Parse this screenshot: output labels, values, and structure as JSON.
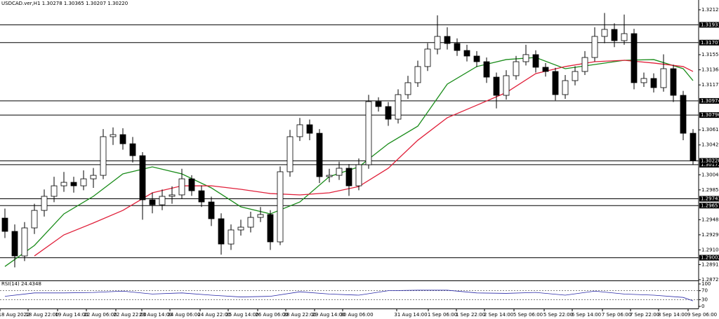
{
  "chart_data": {
    "type": "candlestick",
    "title": "USDCAD.ver,H1 1.30278 1.30365 1.30207 1.30220",
    "ylim": [
      1.28716,
      1.32243
    ],
    "yticks": [
      {
        "value": 1.3212,
        "label": "1.32120"
      },
      {
        "value": 1.31555,
        "label": "1.31555"
      },
      {
        "value": 1.31365,
        "label": "1.31365"
      },
      {
        "value": 1.31175,
        "label": "1.31175"
      },
      {
        "value": 1.3061,
        "label": "1.30610"
      },
      {
        "value": 1.3042,
        "label": "1.30420"
      },
      {
        "value": 1.30045,
        "label": "1.30045"
      },
      {
        "value": 1.29855,
        "label": "1.29855"
      },
      {
        "value": 1.2948,
        "label": "1.29480"
      },
      {
        "value": 1.2929,
        "label": "1.29290"
      },
      {
        "value": 1.291,
        "label": "1.29100"
      },
      {
        "value": 1.28915,
        "label": "1.28915"
      },
      {
        "value": 1.28725,
        "label": "1.28725"
      }
    ],
    "levels": [
      {
        "value": 1.31931,
        "label": "1.31931"
      },
      {
        "value": 1.31707,
        "label": "1.31707"
      },
      {
        "value": 1.30974,
        "label": "1.30974"
      },
      {
        "value": 1.30796,
        "label": "1.30796"
      },
      {
        "value": 1.30172,
        "label": "1.30172"
      },
      {
        "value": 1.29743,
        "label": "1.29743"
      },
      {
        "value": 1.29657,
        "label": "1.29657"
      },
      {
        "value": 1.29002,
        "label": "1.29002"
      }
    ],
    "current": {
      "value": 1.3022,
      "label": "1.30220"
    },
    "open": [
      1.295,
      1.29333,
      1.29024,
      1.29377,
      1.29597,
      1.29774,
      1.29906,
      1.2995,
      1.29906,
      1.29994,
      1.30038,
      1.30524,
      1.3055,
      1.30435,
      1.30285,
      1.2973,
      1.29668,
      1.29774,
      1.29792,
      1.29994,
      1.29844,
      1.29703,
      1.29492,
      1.29174,
      1.29351,
      1.29386,
      1.29509,
      1.29545,
      1.29201,
      1.30083,
      1.30524,
      1.30674,
      1.30567,
      1.30021,
      1.30038,
      1.30127,
      1.29906,
      1.30171,
      1.30965,
      1.30903,
      1.30744,
      1.31053,
      1.31203,
      1.31406,
      1.31626,
      1.31785,
      1.31696,
      1.31608,
      1.31538,
      1.31467,
      1.31273,
      1.31044,
      1.31291,
      1.31467,
      1.31556,
      1.31397,
      1.31344,
      1.31053,
      1.31229,
      1.31344,
      1.3152,
      1.31785,
      1.31873,
      1.31732,
      1.3182,
      1.31203,
      1.31256,
      1.31141,
      1.31379,
      1.31044,
      1.30567
    ],
    "high": [
      1.2962,
      1.2942,
      1.2945,
      1.2968,
      1.2986,
      1.3002,
      1.3008,
      1.3002,
      1.301,
      1.3013,
      1.3062,
      1.3064,
      1.3063,
      1.3052,
      1.3033,
      1.2982,
      1.2986,
      1.299,
      1.3012,
      1.3004,
      1.2991,
      1.2977,
      1.2956,
      1.2942,
      1.2948,
      1.2958,
      1.2964,
      1.296,
      1.3015,
      1.3061,
      1.3076,
      1.3074,
      1.3062,
      1.3012,
      1.3021,
      1.3018,
      1.3025,
      1.3105,
      1.3102,
      1.3096,
      1.3112,
      1.3129,
      1.3148,
      1.317,
      1.3205,
      1.319,
      1.3176,
      1.3168,
      1.316,
      1.3152,
      1.3133,
      1.3136,
      1.3154,
      1.3168,
      1.3161,
      1.3145,
      1.3139,
      1.313,
      1.3141,
      1.316,
      1.319,
      1.3208,
      1.3195,
      1.3206,
      1.3188,
      1.3133,
      1.3132,
      1.3156,
      1.3143,
      1.311,
      1.3062
    ],
    "low": [
      1.2925,
      1.2888,
      1.2896,
      1.293,
      1.2952,
      1.297,
      1.2983,
      1.2982,
      1.2985,
      1.2988,
      1.2999,
      1.3042,
      1.3036,
      1.302,
      1.2948,
      1.2956,
      1.296,
      1.2968,
      1.2974,
      1.2978,
      1.2964,
      1.294,
      1.2904,
      1.291,
      1.2928,
      1.2932,
      1.2945,
      1.291,
      1.2916,
      1.3002,
      1.3047,
      1.3048,
      1.2994,
      1.2995,
      1.2998,
      1.2978,
      1.2985,
      1.3012,
      1.3084,
      1.3066,
      1.3069,
      1.31,
      1.3115,
      1.3135,
      1.3156,
      1.3162,
      1.3154,
      1.3147,
      1.314,
      1.312,
      1.3088,
      1.3099,
      1.3124,
      1.3142,
      1.3133,
      1.3128,
      1.3098,
      1.31,
      1.3117,
      1.313,
      1.3147,
      1.317,
      1.3165,
      1.3168,
      1.3112,
      1.3115,
      1.3108,
      1.3109,
      1.3096,
      1.3048,
      1.3017
    ],
    "close": [
      1.29333,
      1.29024,
      1.29377,
      1.29597,
      1.29774,
      1.29906,
      1.2995,
      1.29906,
      1.29994,
      1.30038,
      1.30524,
      1.3055,
      1.30435,
      1.30285,
      1.2973,
      1.29668,
      1.29774,
      1.29792,
      1.29994,
      1.29844,
      1.29703,
      1.29492,
      1.29174,
      1.29351,
      1.29386,
      1.29509,
      1.29545,
      1.29201,
      1.30083,
      1.30524,
      1.30674,
      1.30567,
      1.30021,
      1.30038,
      1.30127,
      1.29906,
      1.30171,
      1.30965,
      1.30903,
      1.30744,
      1.31053,
      1.31203,
      1.31406,
      1.31626,
      1.31785,
      1.31696,
      1.31608,
      1.31538,
      1.31467,
      1.31273,
      1.31044,
      1.31291,
      1.31467,
      1.31556,
      1.31397,
      1.31344,
      1.31053,
      1.31229,
      1.31344,
      1.3152,
      1.31785,
      1.31873,
      1.31732,
      1.3182,
      1.31203,
      1.31256,
      1.31141,
      1.31379,
      1.31044,
      1.30567,
      1.3022
    ],
    "moving_averages": [
      {
        "color": "#1a8c1a",
        "x": [
          0,
          3,
          6,
          9,
          12,
          15,
          18,
          21,
          24,
          27,
          30,
          33,
          36,
          39,
          42,
          45,
          48,
          51,
          54,
          57,
          60,
          63,
          66,
          69,
          70
        ],
        "values": [
          1.28892,
          1.29156,
          1.29553,
          1.29774,
          1.30056,
          1.30144,
          1.30056,
          1.2988,
          1.29642,
          1.29553,
          1.29703,
          1.30021,
          1.30144,
          1.30435,
          1.30656,
          1.31185,
          1.31406,
          1.31494,
          1.3152,
          1.31379,
          1.31432,
          1.31485,
          1.31494,
          1.31379,
          1.31229
        ]
      },
      {
        "color": "#e0203a",
        "x": [
          0,
          3,
          6,
          9,
          12,
          15,
          18,
          21,
          24,
          27,
          30,
          33,
          36,
          39,
          42,
          45,
          48,
          51,
          54,
          57,
          60,
          63,
          66,
          69,
          70
        ],
        "values": [
          null,
          1.29024,
          1.29289,
          1.29439,
          1.29597,
          1.29818,
          1.29906,
          1.29906,
          1.29862,
          1.29809,
          1.29792,
          1.29818,
          1.29897,
          1.30127,
          1.30479,
          1.30762,
          1.3092,
          1.31079,
          1.31317,
          1.31406,
          1.31467,
          1.31485,
          1.3145,
          1.31406,
          1.31344
        ]
      }
    ],
    "rsi": {
      "label": "RSI(14) 24.4348",
      "color": "#2a2aa8",
      "ylim": [
        0,
        100
      ],
      "yticks": [
        0,
        30,
        70,
        100
      ],
      "levels": [
        30,
        70
      ],
      "x": [
        0,
        3,
        6,
        9,
        12,
        15,
        18,
        21,
        24,
        27,
        30,
        33,
        36,
        39,
        42,
        45,
        48,
        51,
        54,
        57,
        60,
        63,
        66,
        69,
        70
      ],
      "values": [
        45,
        60,
        60,
        62,
        68,
        55,
        60,
        50,
        42,
        45,
        65,
        55,
        50,
        70,
        72,
        72,
        60,
        58,
        62,
        50,
        68,
        55,
        50,
        40,
        24.4348
      ]
    },
    "time_labels": [
      "18 Aug 2022",
      "18 Aug 22:00",
      "19 Aug 14:00",
      "22 Aug 06:00",
      "22 Aug 22:00",
      "23 Aug 14:00",
      "24 Aug 06:00",
      "24 Aug 22:00",
      "25 Aug 14:00",
      "26 Aug 06:00",
      "28 Aug 22:00",
      "29 Aug 14:00",
      "30 Aug 06:00",
      "31 Aug 14:00",
      "1 Sep 06:00",
      "1 Sep 22:00",
      "2 Sep 14:00",
      "5 Sep 06:00",
      "5 Sep 22:00",
      "6 Sep 14:00",
      "7 Sep 06:00",
      "7 Sep 22:00",
      "8 Sep 14:00",
      "9 Sep 06:00"
    ]
  }
}
